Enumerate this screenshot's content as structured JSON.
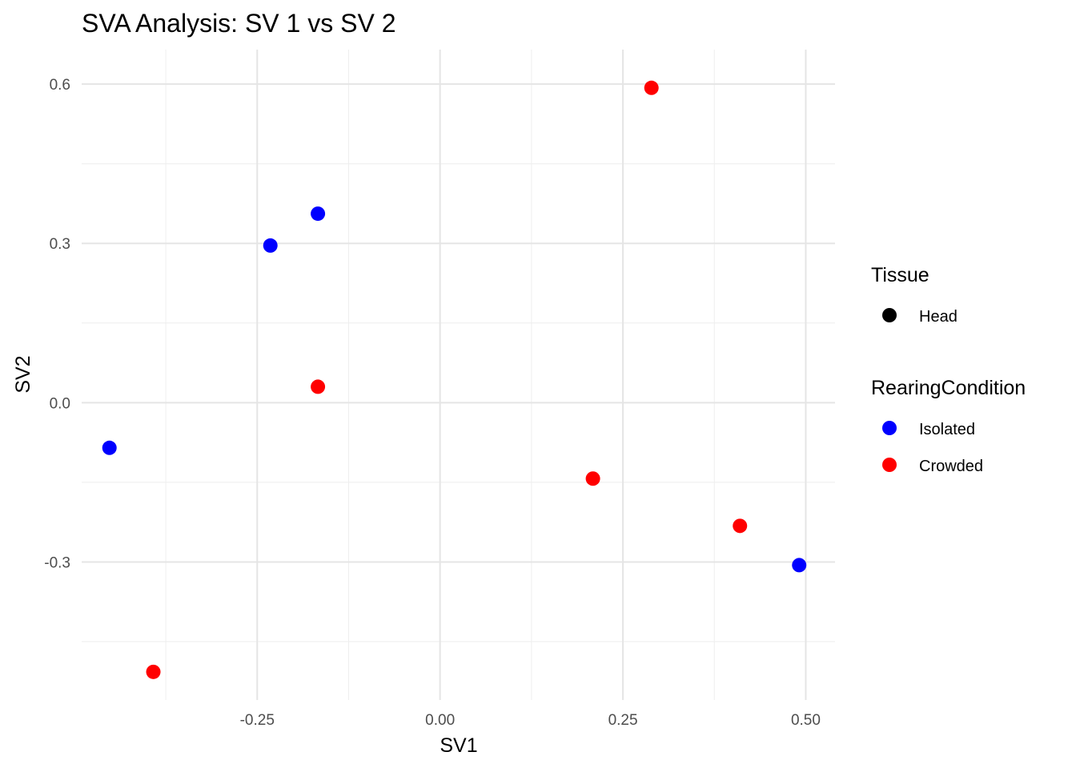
{
  "chart_data": {
    "type": "scatter",
    "title": "SVA Analysis: SV 1  vs SV 2",
    "xlabel": "SV1",
    "ylabel": "SV2",
    "xlim": [
      -0.49,
      0.54
    ],
    "ylim": [
      -0.56,
      0.665
    ],
    "x_ticks": [
      -0.25,
      0.0,
      0.25,
      0.5
    ],
    "x_tick_labels": [
      "-0.25",
      "0.00",
      "0.25",
      "0.50"
    ],
    "x_minor": [
      -0.375,
      -0.125,
      0.125,
      0.375
    ],
    "y_ticks": [
      -0.3,
      0.0,
      0.3,
      0.6
    ],
    "y_tick_labels": [
      "-0.3",
      "0.0",
      "0.3",
      "0.6"
    ],
    "y_minor": [
      -0.45,
      -0.15,
      0.15,
      0.45
    ],
    "grid": true,
    "legend_position": "right",
    "legend": [
      {
        "title": "Tissue",
        "entries": [
          {
            "label": "Head",
            "color": "#000000"
          }
        ]
      },
      {
        "title": "RearingCondition",
        "entries": [
          {
            "label": "Isolated",
            "color": "#0000ff"
          },
          {
            "label": "Crowded",
            "color": "#ff0000"
          }
        ]
      }
    ],
    "series": [
      {
        "name": "Isolated",
        "color": "#0000ff",
        "points": [
          {
            "x": -0.452,
            "y": -0.085
          },
          {
            "x": -0.232,
            "y": 0.296
          },
          {
            "x": -0.167,
            "y": 0.356
          },
          {
            "x": 0.491,
            "y": -0.306
          }
        ]
      },
      {
        "name": "Crowded",
        "color": "#ff0000",
        "points": [
          {
            "x": -0.392,
            "y": -0.507
          },
          {
            "x": -0.167,
            "y": 0.03
          },
          {
            "x": 0.209,
            "y": -0.143
          },
          {
            "x": 0.289,
            "y": 0.593
          },
          {
            "x": 0.41,
            "y": -0.232
          }
        ]
      }
    ]
  }
}
